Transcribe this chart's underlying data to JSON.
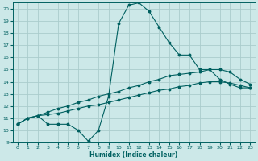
{
  "xlabel": "Humidex (Indice chaleur)",
  "bg_color": "#cce8e8",
  "grid_color": "#aacccc",
  "line_color": "#006060",
  "xlim": [
    -0.5,
    23.5
  ],
  "ylim": [
    9,
    20.5
  ],
  "xticks": [
    0,
    1,
    2,
    3,
    4,
    5,
    6,
    7,
    8,
    9,
    10,
    11,
    12,
    13,
    14,
    15,
    16,
    17,
    18,
    19,
    20,
    21,
    22,
    23
  ],
  "yticks": [
    9,
    10,
    11,
    12,
    13,
    14,
    15,
    16,
    17,
    18,
    19,
    20
  ],
  "line1_x": [
    0,
    1,
    2,
    3,
    4,
    5,
    6,
    7,
    8,
    9,
    10,
    11,
    12,
    13,
    14,
    15,
    16,
    17,
    18,
    19,
    20,
    21,
    22,
    23
  ],
  "line1_y": [
    10.5,
    11.0,
    11.2,
    10.5,
    10.5,
    10.5,
    10.0,
    9.1,
    10.0,
    12.8,
    18.8,
    20.3,
    20.5,
    19.8,
    18.5,
    17.2,
    16.2,
    16.2,
    15.0,
    15.0,
    14.2,
    13.8,
    13.5,
    13.5
  ],
  "line2_x": [
    0,
    1,
    2,
    3,
    4,
    5,
    6,
    7,
    8,
    9,
    10,
    11,
    12,
    13,
    14,
    15,
    16,
    17,
    18,
    19,
    20,
    21,
    22,
    23
  ],
  "line2_y": [
    10.5,
    11.0,
    11.2,
    11.5,
    11.8,
    12.0,
    12.3,
    12.5,
    12.8,
    13.0,
    13.2,
    13.5,
    13.7,
    14.0,
    14.2,
    14.5,
    14.6,
    14.7,
    14.8,
    15.0,
    15.0,
    14.8,
    14.2,
    13.8
  ],
  "line3_x": [
    0,
    1,
    2,
    3,
    4,
    5,
    6,
    7,
    8,
    9,
    10,
    11,
    12,
    13,
    14,
    15,
    16,
    17,
    18,
    19,
    20,
    21,
    22,
    23
  ],
  "line3_y": [
    10.5,
    11.0,
    11.2,
    11.3,
    11.4,
    11.6,
    11.8,
    12.0,
    12.1,
    12.3,
    12.5,
    12.7,
    12.9,
    13.1,
    13.3,
    13.4,
    13.6,
    13.7,
    13.9,
    14.0,
    14.0,
    13.9,
    13.7,
    13.5
  ]
}
